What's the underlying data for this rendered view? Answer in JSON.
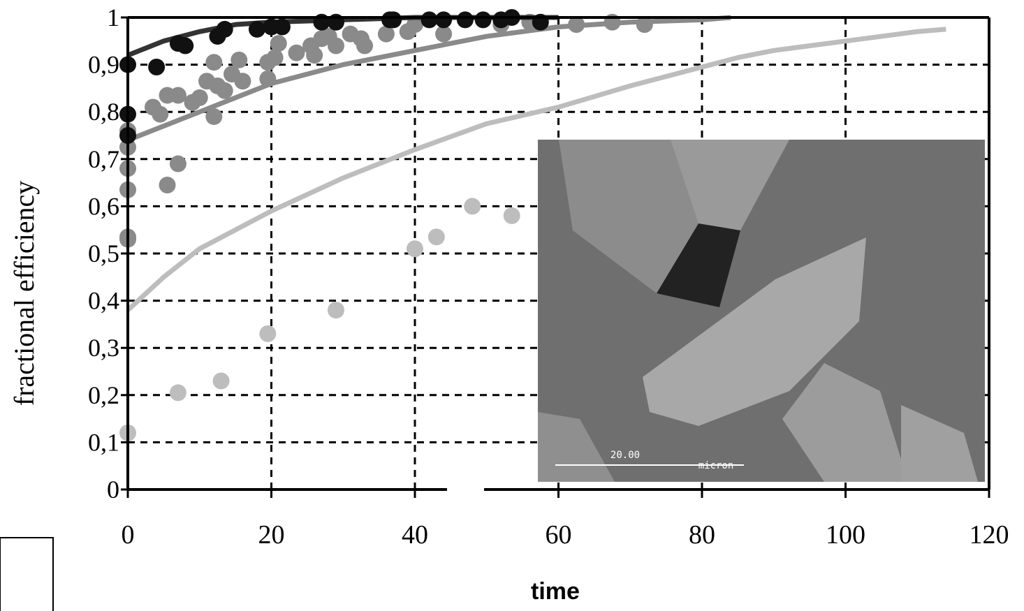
{
  "chart_data": {
    "type": "scatter",
    "x_label": "time",
    "y_label": "fractional efficiency",
    "xlim": [
      0,
      120
    ],
    "xticks": [
      0,
      20,
      40,
      60,
      80,
      100,
      120
    ],
    "ylim": [
      0,
      1
    ],
    "yticks": [
      0,
      {
        "value": 0.1,
        "label": "0,1"
      },
      {
        "value": 0.2,
        "label": "0,2"
      },
      {
        "value": 0.3,
        "label": "0,3"
      },
      {
        "value": 0.4,
        "label": "0,4"
      },
      {
        "value": 0.5,
        "label": "0,5"
      },
      {
        "value": 0.6,
        "label": "0,6"
      },
      {
        "value": 0.7,
        "label": "0,7"
      },
      {
        "value": 0.8,
        "label": "0,8"
      },
      {
        "value": 0.9,
        "label": "0,9"
      },
      1
    ],
    "grid": true,
    "series": [
      {
        "mode": "line",
        "color": "#bdbdbd",
        "x": [
          0,
          5,
          10,
          20,
          30,
          40,
          50,
          60,
          70,
          80,
          85,
          90,
          100,
          105,
          110,
          114
        ],
        "values": [
          0.38,
          0.45,
          0.51,
          0.59,
          0.66,
          0.72,
          0.775,
          0.81,
          0.855,
          0.895,
          0.915,
          0.93,
          0.95,
          0.96,
          0.97,
          0.975
        ]
      },
      {
        "mode": "markers",
        "color": "#bdbdbd",
        "x": [
          0,
          7,
          13,
          19.5,
          29,
          40,
          43,
          48,
          53.5
        ],
        "values": [
          0.12,
          0.205,
          0.23,
          0.33,
          0.38,
          0.51,
          0.535,
          0.6,
          0.58
        ]
      },
      {
        "mode": "line",
        "color": "#8a8a8a",
        "x": [
          0,
          5,
          10,
          20,
          30,
          40,
          50,
          60,
          70,
          80,
          84
        ],
        "values": [
          0.74,
          0.77,
          0.8,
          0.86,
          0.9,
          0.93,
          0.96,
          0.98,
          0.99,
          0.995,
          1.0
        ]
      },
      {
        "mode": "markers",
        "color": "#8a8a8a",
        "x": [
          0,
          0,
          0,
          0,
          0,
          0,
          5.5,
          7,
          3.5,
          4.5,
          5.5,
          7,
          9,
          10,
          11,
          12.5,
          13.5,
          12,
          12,
          14.5,
          15.5,
          16,
          19.5,
          19.5,
          20.5,
          21,
          23.5,
          25.5,
          26,
          27,
          28,
          29,
          31,
          32.5,
          33,
          36,
          39,
          40,
          44,
          52,
          56,
          62.5,
          67.5,
          72
        ],
        "values": [
          0.53,
          0.535,
          0.635,
          0.68,
          0.725,
          0.76,
          0.645,
          0.69,
          0.81,
          0.795,
          0.835,
          0.835,
          0.82,
          0.83,
          0.865,
          0.855,
          0.845,
          0.79,
          0.905,
          0.88,
          0.91,
          0.865,
          0.87,
          0.905,
          0.915,
          0.945,
          0.925,
          0.94,
          0.92,
          0.955,
          0.96,
          0.94,
          0.965,
          0.955,
          0.94,
          0.965,
          0.97,
          0.985,
          0.965,
          0.985,
          0.99,
          0.985,
          0.99,
          0.985
        ]
      },
      {
        "mode": "line",
        "color": "#333333",
        "x": [
          0,
          5,
          10,
          15,
          20,
          30,
          40,
          60
        ],
        "values": [
          0.92,
          0.95,
          0.97,
          0.985,
          0.99,
          0.995,
          1.0,
          1.0
        ]
      },
      {
        "mode": "markers",
        "color": "#111111",
        "x": [
          0,
          0,
          0,
          4,
          7,
          8,
          12.5,
          13.5,
          18,
          20,
          21.5,
          27,
          29,
          36.5,
          37,
          42,
          44,
          47,
          49.5,
          52,
          53.5,
          57.5
        ],
        "values": [
          0.9,
          0.795,
          0.75,
          0.895,
          0.945,
          0.94,
          0.96,
          0.975,
          0.975,
          0.98,
          0.98,
          0.99,
          0.99,
          0.995,
          0.995,
          0.995,
          0.995,
          0.995,
          0.995,
          0.995,
          1.0,
          0.99
        ]
      }
    ],
    "inset": {
      "scale_label": "20.00",
      "unit_label": "micron"
    }
  }
}
